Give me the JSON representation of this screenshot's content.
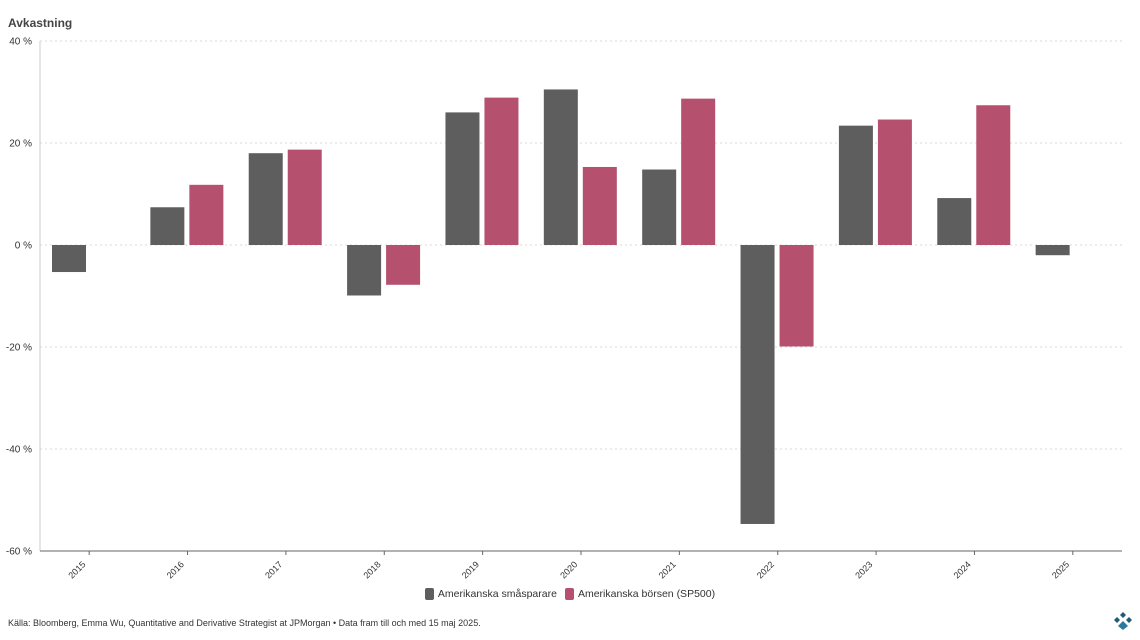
{
  "title": "Avkastning",
  "source": "Källa: Bloomberg, Emma Wu, Quantitative and Derivative Strategist at JPMorgan • Data fram till och med 15 maj 2025.",
  "logo_icon": "diamond-logo-icon",
  "colors": {
    "series1": "#5e5e5e",
    "series2": "#b5506e",
    "grid": "#d9d9d9",
    "axis": "#666666"
  },
  "chart_data": {
    "type": "bar",
    "categories": [
      "2015",
      "2016",
      "2017",
      "2018",
      "2019",
      "2020",
      "2021",
      "2022",
      "2023",
      "2024",
      "2025"
    ],
    "series": [
      {
        "name": "Amerikanska småsparare",
        "values": [
          -5.3,
          7.4,
          18.0,
          -9.9,
          26.0,
          30.5,
          14.8,
          -54.7,
          23.4,
          9.2,
          -2.0
        ]
      },
      {
        "name": "Amerikanska börsen (SP500)",
        "values": [
          null,
          11.8,
          18.7,
          -7.8,
          28.9,
          15.3,
          28.7,
          -19.9,
          24.6,
          27.4,
          null
        ]
      }
    ],
    "ylim": [
      -60,
      40
    ],
    "yticks": [
      40,
      20,
      0,
      -20,
      -40,
      -60
    ],
    "ytick_labels": [
      "40 %",
      "20 %",
      "0 %",
      "-20 %",
      "-40 %",
      "-60 %"
    ],
    "ylabel": "Avkastning",
    "grid": true,
    "legend_position": "bottom"
  }
}
